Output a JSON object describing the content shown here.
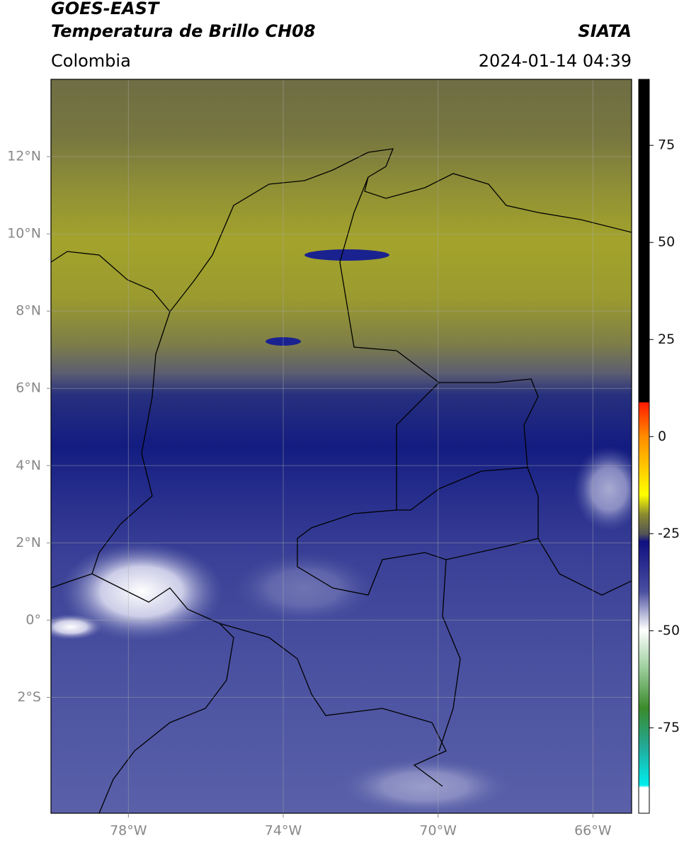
{
  "header": {
    "title": "GOES-EAST",
    "subtitle": "Temperatura de Brillo CH08",
    "source": "SIATA",
    "region": "Colombia",
    "datetime": "2024-01-14 04:39"
  },
  "map": {
    "xlim": [
      -80,
      -65
    ],
    "ylim": [
      -5,
      14
    ],
    "xticks": [
      {
        "value": -78,
        "label": "78°W"
      },
      {
        "value": -74,
        "label": "74°W"
      },
      {
        "value": -70,
        "label": "70°W"
      },
      {
        "value": -66,
        "label": "66°W"
      }
    ],
    "yticks": [
      {
        "value": 12,
        "label": "12°N"
      },
      {
        "value": 10,
        "label": "10°N"
      },
      {
        "value": 8,
        "label": "8°N"
      },
      {
        "value": 6,
        "label": "6°N"
      },
      {
        "value": 4,
        "label": "4°N"
      },
      {
        "value": 2,
        "label": "2°N"
      },
      {
        "value": 0,
        "label": "0°"
      },
      {
        "value": -2,
        "label": "2°S"
      }
    ],
    "grid": true
  },
  "colorbar": {
    "clim": [
      -97,
      92
    ],
    "ticks": [
      75,
      50,
      25,
      0,
      -25,
      -50,
      -75
    ]
  }
}
